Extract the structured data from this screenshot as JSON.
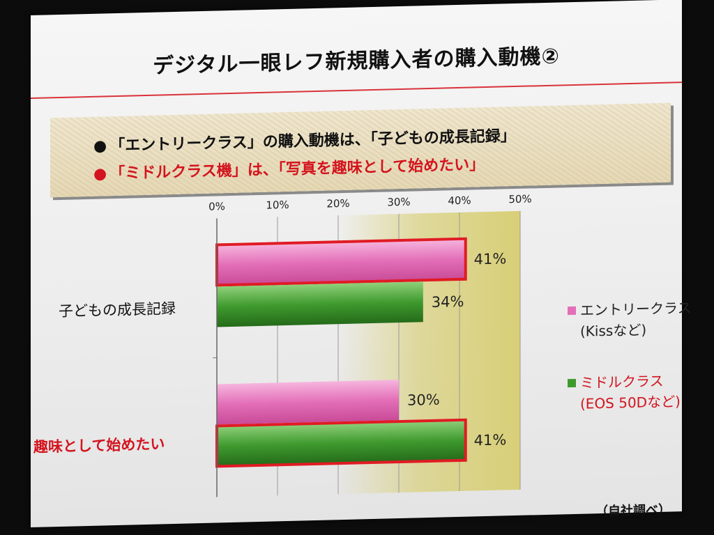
{
  "slide": {
    "title": "デジタル一眼レフ新規購入者の購入動機②",
    "bullets": [
      {
        "marker": "●",
        "text": "「エントリークラス」の購入動機は、「子どもの成長記録」",
        "color": "#111111"
      },
      {
        "marker": "●",
        "text": "「ミドルクラス機」は、「写真を趣味として始めたい」",
        "color": "#d3141e"
      }
    ],
    "source": "（自社調べ）"
  },
  "chart_data": {
    "type": "bar",
    "orientation": "horizontal",
    "categories": [
      "子どもの成長記録",
      "趣味として始めたい"
    ],
    "series": [
      {
        "name": "エントリークラス",
        "sublabel": "(Kissなど)",
        "values": [
          41,
          30
        ],
        "data_labels": [
          "41%",
          "30%"
        ],
        "color": "#e36fb8",
        "highlight": [
          true,
          false
        ]
      },
      {
        "name": "ミドルクラス",
        "sublabel": "(EOS 50Dなど)",
        "values": [
          34,
          41
        ],
        "data_labels": [
          "34%",
          "41%"
        ],
        "color": "#3f9a2e",
        "highlight": [
          false,
          true
        ]
      }
    ],
    "xlim": [
      0,
      50
    ],
    "ticks": [
      "0%",
      "10%",
      "20%",
      "30%",
      "40%",
      "50%"
    ],
    "tick_values": [
      0,
      10,
      20,
      30,
      40,
      50
    ],
    "highlight_range": [
      20,
      50
    ],
    "highlight_color": "#d8cf77",
    "highlight_border_color": "#e01b24",
    "grid": true,
    "legend_position": "right"
  }
}
